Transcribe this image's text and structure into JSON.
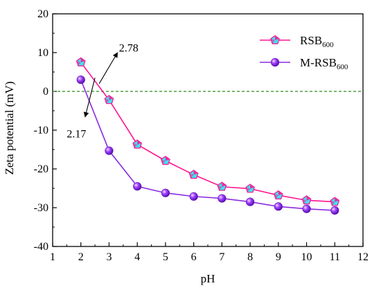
{
  "chart_data": {
    "type": "line",
    "xlabel": "pH",
    "ylabel": "Zeta potential (mV)",
    "xlim": [
      1,
      12
    ],
    "ylim": [
      -40,
      20
    ],
    "xticks": [
      1,
      2,
      3,
      4,
      5,
      6,
      7,
      8,
      9,
      10,
      11,
      12
    ],
    "yticks": [
      -40,
      -30,
      -20,
      -10,
      0,
      10,
      20
    ],
    "grid": false,
    "legend_position": "top-right",
    "reference_line": {
      "y": 0,
      "color": "#2e8b1e",
      "style": "dashed"
    },
    "series": [
      {
        "name_main": "RSB",
        "name_sub": "600",
        "marker": "pentagon",
        "line_color": "#ff1493",
        "marker_fill": "#40e0f0",
        "x": [
          2,
          3,
          4,
          5,
          6,
          7,
          8,
          9,
          10,
          11
        ],
        "y": [
          7.5,
          -2.2,
          -13.7,
          -17.9,
          -21.5,
          -24.6,
          -25.1,
          -26.8,
          -28.1,
          -28.5
        ]
      },
      {
        "name_main": "M-RSB",
        "name_sub": "600",
        "marker": "sphere",
        "line_color": "#8a2be2",
        "marker_fill": "#9b30ff",
        "x": [
          2,
          3,
          4,
          5,
          6,
          7,
          8,
          9,
          10,
          11
        ],
        "y": [
          3.0,
          -15.3,
          -24.5,
          -26.2,
          -27.1,
          -27.6,
          -28.5,
          -29.7,
          -30.3,
          -30.7
        ]
      }
    ],
    "annotations": [
      {
        "text": "2.78",
        "arrow_from": [
          2.65,
          2.0
        ],
        "arrow_to": [
          3.3,
          10.0
        ],
        "text_at": [
          3.35,
          10.3
        ]
      },
      {
        "text": "2.17",
        "arrow_from": [
          2.5,
          3.5
        ],
        "arrow_to": [
          2.15,
          -6.6
        ],
        "text_at": [
          1.5,
          -11.9
        ]
      }
    ]
  }
}
